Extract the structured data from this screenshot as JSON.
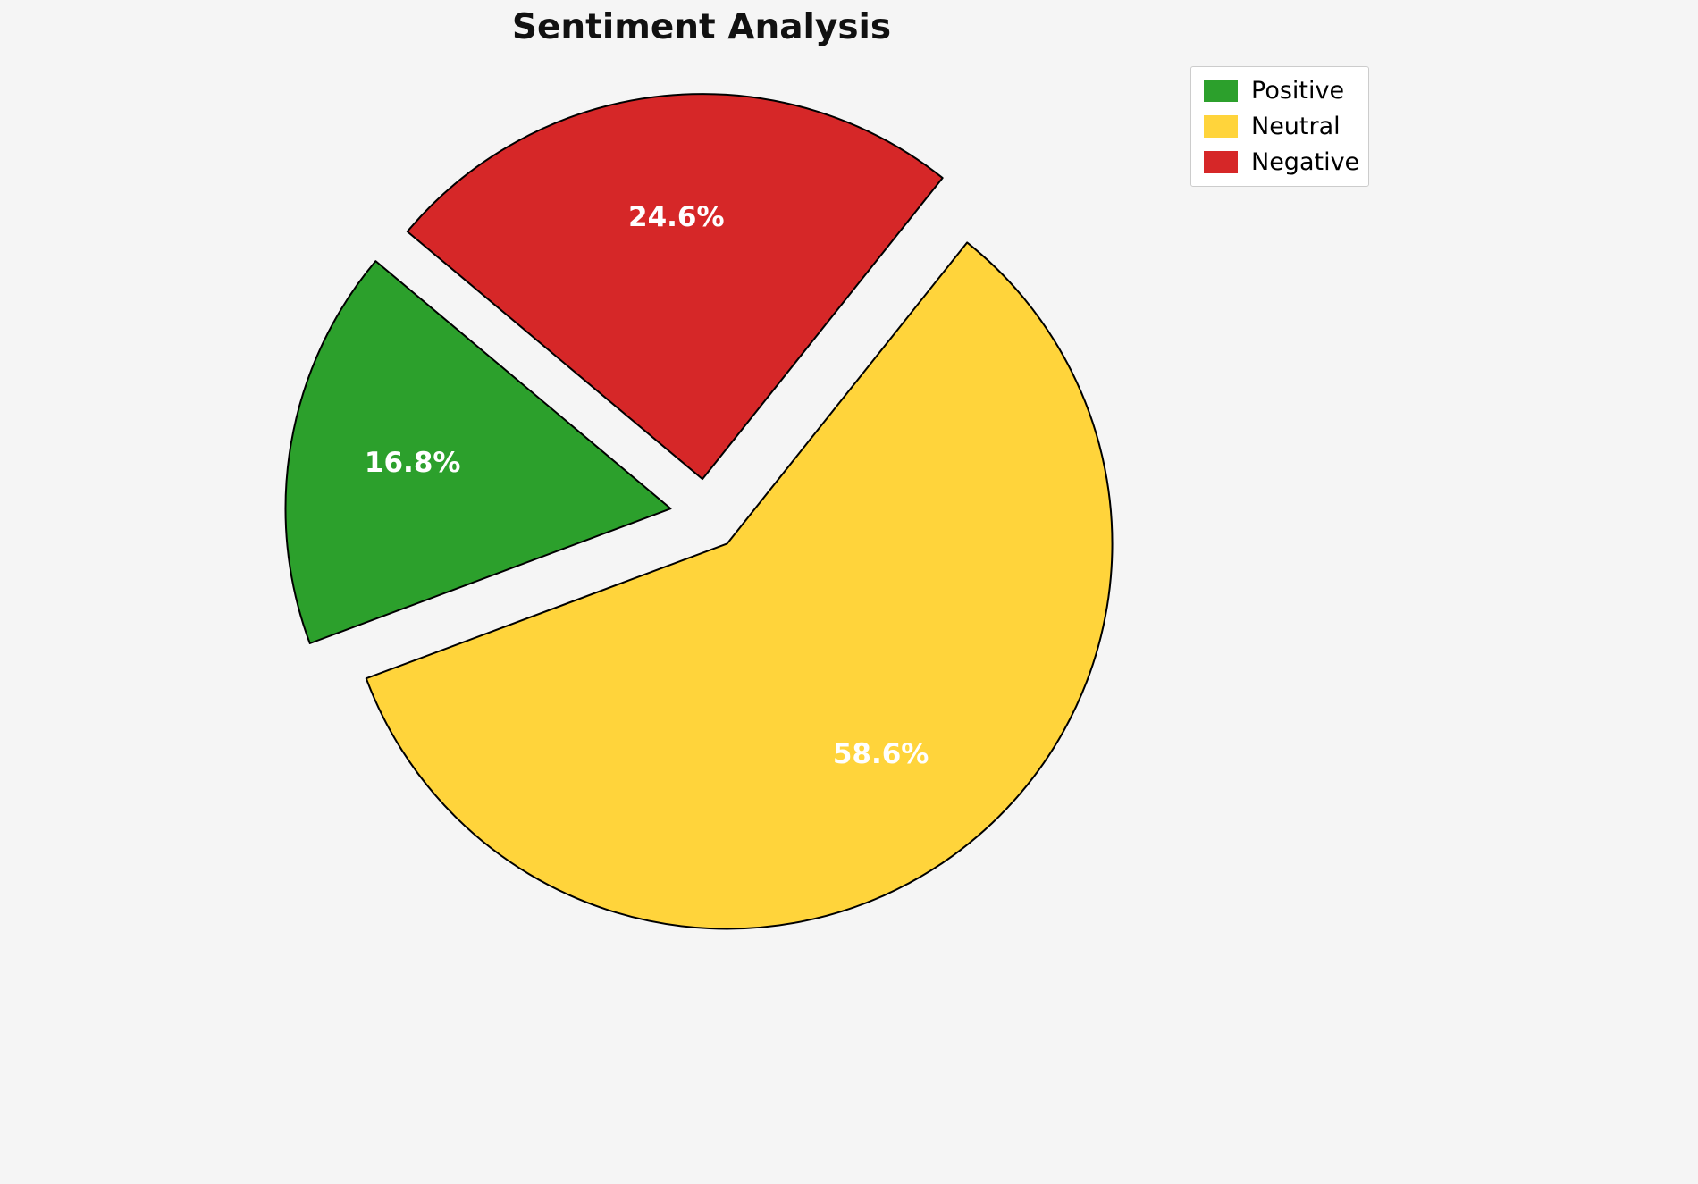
{
  "chart_data": {
    "type": "pie",
    "title": "Sentiment Analysis",
    "slices": [
      {
        "label": "Positive",
        "value": 16.8,
        "pct_label": "16.8%",
        "color": "#2ca02c"
      },
      {
        "label": "Neutral",
        "value": 58.6,
        "pct_label": "58.6%",
        "color": "#ffd43b"
      },
      {
        "label": "Negative",
        "value": 24.6,
        "pct_label": "24.6%",
        "color": "#d62728"
      }
    ],
    "legend": {
      "position": "upper right",
      "entries": [
        "Positive",
        "Neutral",
        "Negative"
      ]
    },
    "start_angle_deg": 140,
    "direction": "counterclockwise",
    "explode": 0.093,
    "pct_distance": 0.68,
    "wedge_edge_color": "#000000",
    "background_color": "#f5f5f5",
    "pct_label_color": "#ffffff"
  }
}
